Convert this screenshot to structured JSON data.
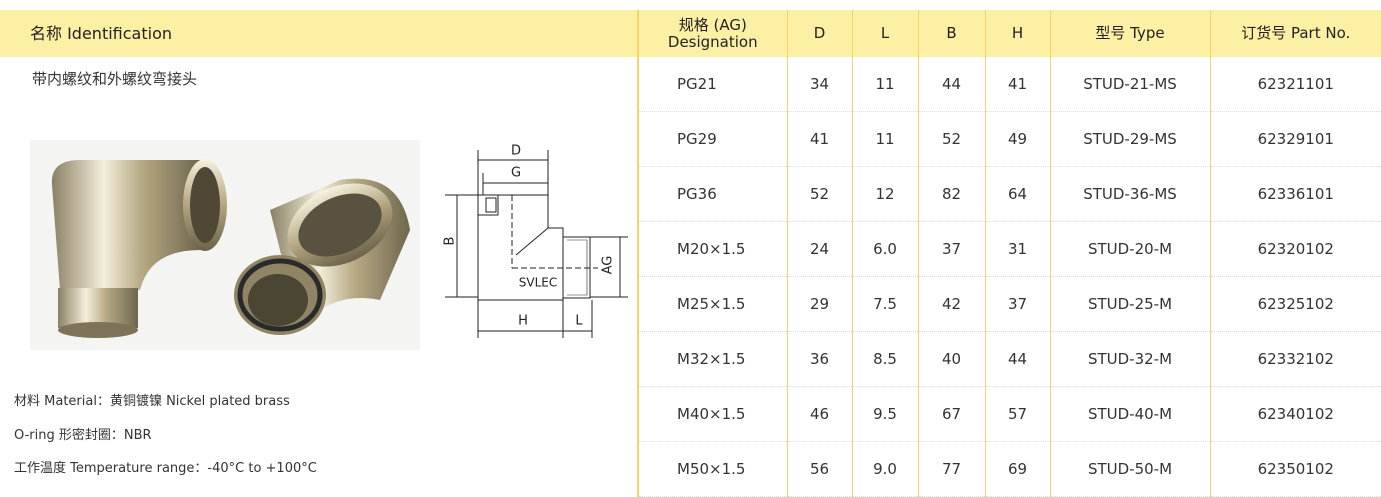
{
  "left": {
    "header": "名称 Identification",
    "product_name": "带内螺纹和外螺纹弯接头",
    "drawing_labels": {
      "d": "D",
      "g": "G",
      "b": "B",
      "ag": "AG",
      "brand": "SVLEC",
      "h": "H",
      "l": "L"
    },
    "specs": [
      "材料 Material：黄铜镀镍 Nickel plated brass",
      "O-ring 形密封圈：NBR",
      "工作温度 Temperature range：-40°C to +100°C"
    ]
  },
  "table": {
    "columns": [
      [
        "规格 (AG)",
        "Designation"
      ],
      "D",
      "L",
      "B",
      "H",
      "型号 Type",
      "订货号 Part No."
    ],
    "rows": [
      [
        "PG21",
        "34",
        "11",
        "44",
        "41",
        "STUD-21-MS",
        "62321101"
      ],
      [
        "PG29",
        "41",
        "11",
        "52",
        "49",
        "STUD-29-MS",
        "62329101"
      ],
      [
        "PG36",
        "52",
        "12",
        "82",
        "64",
        "STUD-36-MS",
        "62336101"
      ],
      [
        "M20×1.5",
        "24",
        "6.0",
        "37",
        "31",
        "STUD-20-M",
        "62320102"
      ],
      [
        "M25×1.5",
        "29",
        "7.5",
        "42",
        "37",
        "STUD-25-M",
        "62325102"
      ],
      [
        "M32×1.5",
        "36",
        "8.5",
        "40",
        "44",
        "STUD-32-M",
        "62332102"
      ],
      [
        "M40×1.5",
        "46",
        "9.5",
        "67",
        "57",
        "STUD-40-M",
        "62340102"
      ],
      [
        "M50×1.5",
        "56",
        "9.0",
        "77",
        "69",
        "STUD-50-M",
        "62350102"
      ]
    ]
  }
}
